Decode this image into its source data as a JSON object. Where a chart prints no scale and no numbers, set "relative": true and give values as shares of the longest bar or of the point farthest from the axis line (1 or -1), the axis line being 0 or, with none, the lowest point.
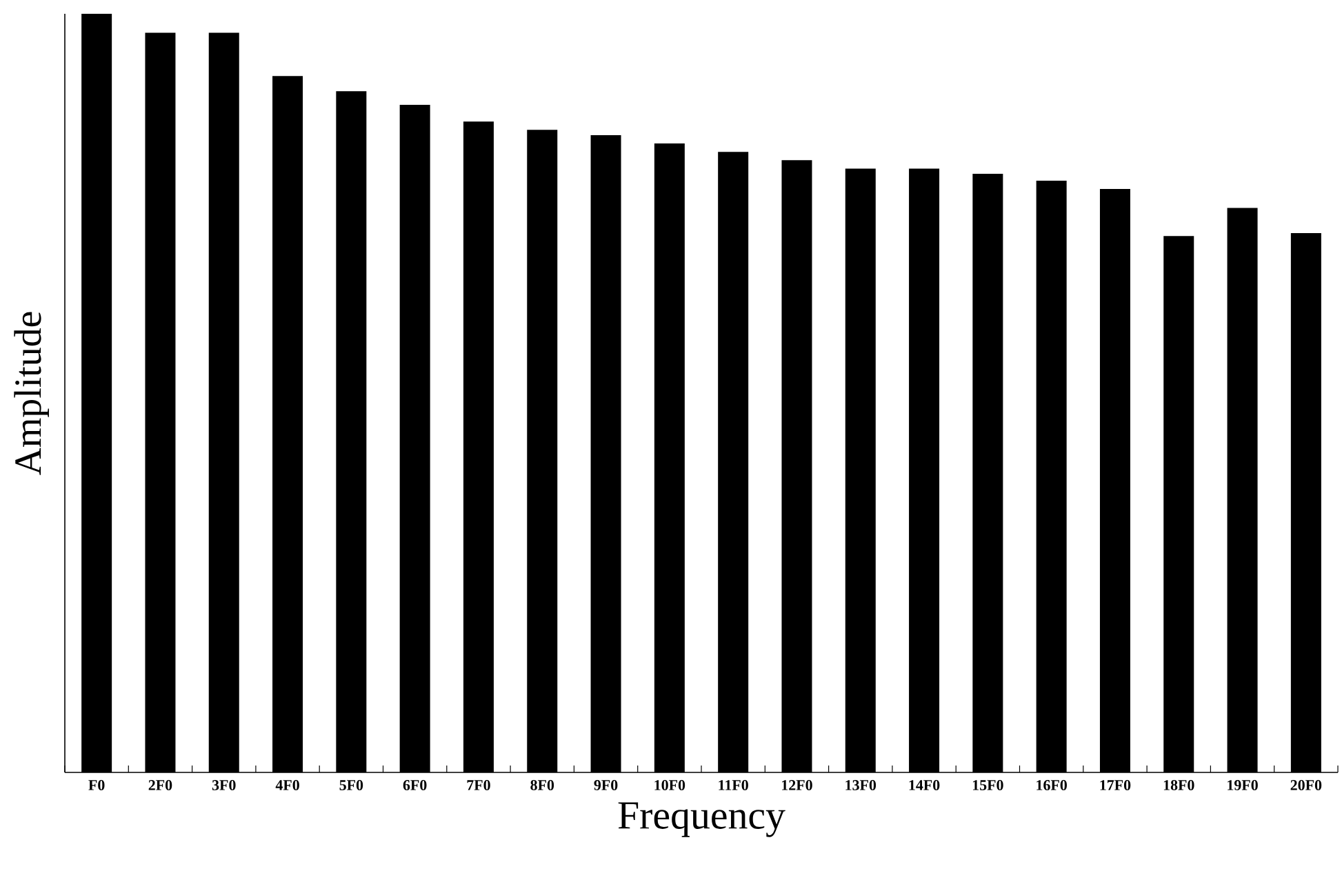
{
  "chart_data": {
    "type": "bar",
    "xlabel": "Frequency",
    "ylabel": "Amplitude",
    "relative": true,
    "color": "#000000",
    "categories": [
      "F0",
      "2F0",
      "3F0",
      "4F0",
      "5F0",
      "6F0",
      "7F0",
      "8F0",
      "9F0",
      "10F0",
      "11F0",
      "12F0",
      "13F0",
      "14F0",
      "15F0",
      "16F0",
      "17F0",
      "18F0",
      "19F0",
      "20F0"
    ],
    "values": [
      1,
      0.975,
      0.975,
      0.918,
      0.898,
      0.88,
      0.858,
      0.847,
      0.84,
      0.829,
      0.818,
      0.807,
      0.796,
      0.796,
      0.789,
      0.78,
      0.769,
      0.707,
      0.744,
      0.711
    ]
  }
}
